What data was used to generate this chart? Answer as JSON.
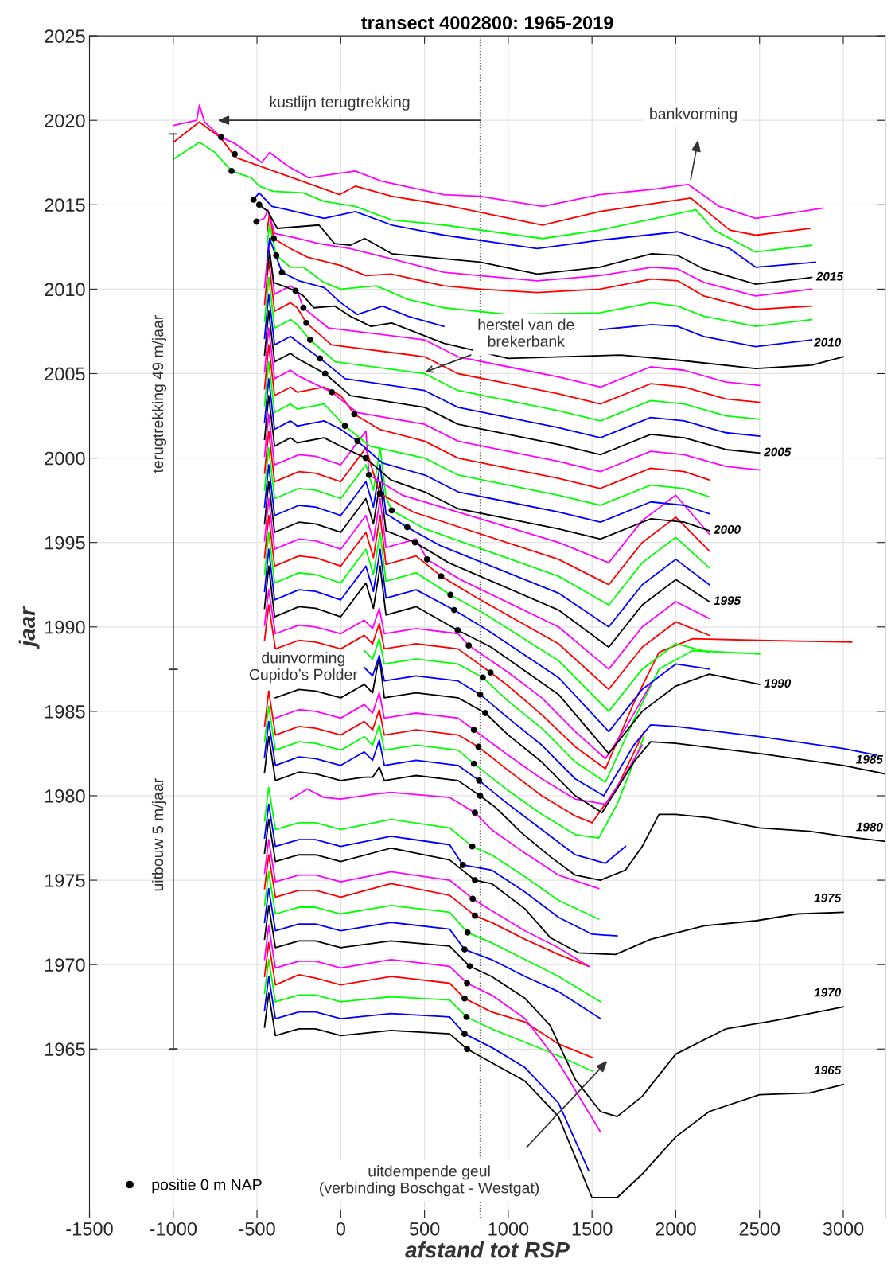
{
  "chart_data": {
    "type": "line",
    "title": "transect 4002800: 1965-2019",
    "xlabel": "afstand tot RSP",
    "ylabel": "jaar",
    "xlim": [
      -1500,
      3250
    ],
    "ylim": [
      1955,
      2025
    ],
    "xticks": [
      -1500,
      -1000,
      -500,
      0,
      500,
      1000,
      1500,
      2000,
      2500,
      3000
    ],
    "yticks": [
      1965,
      1970,
      1975,
      1980,
      1985,
      1990,
      1995,
      2000,
      2005,
      2010,
      2015,
      2020,
      2025
    ],
    "grid": true,
    "legend": "bottom left",
    "ref_lines": [
      {
        "axis": "x",
        "value": 832,
        "color": "#606060",
        "line_style": "dotted"
      }
    ],
    "annotations": [
      "kustlijn terugtrekking",
      "bankvorming",
      {
        "text": "herstel van de\nbrekerbank",
        "x": 506,
        "y": 2005.1
      },
      "duinvorming\nCupido’s Polder",
      "uitdempende geul\n(verbinding Boschgat - Westgat)",
      "terugtrekking 49 m/jaar",
      "uitbouw 5 m/jaar"
    ],
    "series": [
      {
        "name": "1965",
        "color": "#000000",
        "x": [
          -455,
          -430,
          -390,
          -250,
          -150,
          0,
          300,
          650,
          754,
          900,
          1100,
          1300,
          1500,
          1650,
          1800,
          2000,
          2200,
          2500,
          2800,
          3000
        ],
        "values": [
          1966.3,
          1968.3,
          1965.8,
          1966.2,
          1966.2,
          1965.8,
          1966.1,
          1965.9,
          1965.0,
          1964.2,
          1963.1,
          1961.0,
          1956.2,
          1956.2,
          1957.6,
          1959.8,
          1961.3,
          1962.3,
          1962.4,
          1962.9
        ]
      },
      {
        "color": "#0000ff",
        "x": [
          -455,
          -430,
          -390,
          -250,
          -150,
          0,
          300,
          650,
          739,
          900,
          1100,
          1300,
          1480
        ],
        "values": [
          1967.3,
          1969.3,
          1966.8,
          1967.2,
          1967.2,
          1966.8,
          1967.1,
          1966.9,
          1965.9,
          1965.1,
          1963.9,
          1961.8,
          1957.8
        ]
      },
      {
        "color": "#00ff00",
        "x": [
          -455,
          -430,
          -390,
          -250,
          -150,
          0,
          300,
          650,
          751,
          900,
          1100,
          1300,
          1500
        ],
        "values": [
          1968.3,
          1970.3,
          1967.8,
          1968.2,
          1968.2,
          1967.8,
          1968.1,
          1967.9,
          1966.9,
          1966.2,
          1965.4,
          1964.6,
          1963.7
        ]
      },
      {
        "color": "#ff0000",
        "x": [
          -455,
          -430,
          -390,
          -250,
          -150,
          0,
          300,
          650,
          739,
          900,
          1100,
          1300,
          1500
        ],
        "values": [
          1969.3,
          1971.3,
          1968.8,
          1969.4,
          1969.2,
          1968.8,
          1969.3,
          1968.9,
          1968.0,
          1967.2,
          1966.6,
          1965.3,
          1964.5
        ]
      },
      {
        "color": "#ff00ff",
        "x": [
          -455,
          -430,
          -390,
          -250,
          -150,
          0,
          300,
          650,
          754,
          900,
          1100,
          1300,
          1550
        ],
        "values": [
          1970.3,
          1972.3,
          1969.8,
          1970.2,
          1970.2,
          1969.8,
          1970.3,
          1969.9,
          1968.9,
          1968.2,
          1966.8,
          1964.2,
          1960.1
        ]
      },
      {
        "name": "1970",
        "color": "#000000",
        "x": [
          -455,
          -430,
          -390,
          -250,
          -150,
          0,
          300,
          650,
          770,
          900,
          1100,
          1250,
          1400,
          1550,
          1650,
          1800,
          2000,
          2300,
          2600,
          3000
        ],
        "values": [
          1971.5,
          1973.5,
          1971.0,
          1971.4,
          1971.4,
          1971.0,
          1971.4,
          1971.1,
          1969.9,
          1969.3,
          1968.0,
          1966.4,
          1963.2,
          1961.3,
          1961.0,
          1962.2,
          1964.7,
          1966.2,
          1966.7,
          1967.5
        ]
      },
      {
        "color": "#0000ff",
        "x": [
          -455,
          -430,
          -390,
          -250,
          -150,
          0,
          300,
          650,
          739,
          900,
          1100,
          1300,
          1550
        ],
        "values": [
          1972.5,
          1974.5,
          1972.0,
          1972.4,
          1972.4,
          1972.0,
          1972.5,
          1972.1,
          1970.9,
          1970.3,
          1969.3,
          1968.4,
          1966.8
        ]
      },
      {
        "color": "#00ff00",
        "x": [
          -455,
          -430,
          -390,
          -250,
          -150,
          0,
          300,
          650,
          757,
          900,
          1100,
          1300,
          1550
        ],
        "values": [
          1973.5,
          1975.5,
          1973.0,
          1973.4,
          1973.4,
          1973.0,
          1973.5,
          1973.1,
          1971.9,
          1971.3,
          1970.3,
          1969.3,
          1967.8
        ]
      },
      {
        "color": "#ff0000",
        "x": [
          -455,
          -430,
          -390,
          -250,
          -150,
          0,
          300,
          650,
          801,
          900,
          1100,
          1300,
          1480
        ],
        "values": [
          1974.5,
          1976.5,
          1974.0,
          1974.4,
          1974.4,
          1974.0,
          1974.8,
          1974.1,
          1972.9,
          1972.5,
          1971.5,
          1970.6,
          1969.9
        ]
      },
      {
        "color": "#ff00ff",
        "x": [
          -455,
          -430,
          -390,
          -250,
          -150,
          0,
          300,
          650,
          788,
          900,
          1100,
          1300,
          1480
        ],
        "values": [
          1975.4,
          1977.4,
          1974.9,
          1975.3,
          1975.3,
          1974.9,
          1975.5,
          1975.0,
          1973.9,
          1973.2,
          1972.0,
          1971.0,
          1969.9
        ]
      },
      {
        "name": "1975",
        "color": "#000000",
        "x": [
          -455,
          -430,
          -390,
          -250,
          -150,
          0,
          300,
          650,
          801,
          900,
          1100,
          1250,
          1420,
          1640,
          1850,
          2170,
          2480,
          2725,
          3000
        ],
        "values": [
          1976.6,
          1978.6,
          1976.1,
          1976.5,
          1976.5,
          1976.1,
          1976.9,
          1976.2,
          1975.0,
          1974.8,
          1973.3,
          1971.6,
          1970.7,
          1970.6,
          1971.5,
          1972.3,
          1972.6,
          1973.0,
          1973.1
        ]
      },
      {
        "color": "#0000ff",
        "x": [
          -455,
          -430,
          -390,
          -250,
          -150,
          0,
          300,
          650,
          729,
          900,
          1100,
          1300,
          1500,
          1650
        ],
        "values": [
          1977.5,
          1979.5,
          1977.0,
          1977.4,
          1977.4,
          1977.0,
          1977.6,
          1977.1,
          1975.9,
          1975.6,
          1974.3,
          1972.8,
          1971.8,
          1971.7
        ]
      },
      {
        "color": "#00ff00",
        "x": [
          -455,
          -430,
          -390,
          -250,
          -150,
          0,
          300,
          650,
          785,
          900,
          1100,
          1300,
          1540
        ],
        "values": [
          1978.5,
          1980.5,
          1978.0,
          1978.4,
          1978.4,
          1978.0,
          1978.6,
          1978.1,
          1977.0,
          1976.5,
          1975.2,
          1973.8,
          1972.7
        ]
      },
      {
        "color": "#ff00ff",
        "x": [
          -300,
          -200,
          -100,
          0,
          200,
          300,
          650,
          801,
          900,
          1100,
          1300,
          1540
        ],
        "values": [
          1979.8,
          1980.4,
          1979.9,
          1979.8,
          1980.1,
          1980.2,
          1979.9,
          1979.0,
          1978.0,
          1976.6,
          1975.3,
          1974.5
        ]
      },
      {
        "name": "1980",
        "color": "#000000",
        "x": [
          -455,
          -430,
          -390,
          -250,
          -150,
          0,
          140,
          190,
          230,
          260,
          450,
          700,
          832,
          925,
          1080,
          1250,
          1400,
          1550,
          1700,
          1800,
          1900,
          2000,
          2200,
          2500,
          2800,
          3000,
          3250
        ],
        "values": [
          1981.4,
          1983.5,
          1980.9,
          1981.4,
          1981.3,
          1980.9,
          1981.1,
          1981.1,
          1981.7,
          1980.9,
          1981.2,
          1980.9,
          1980.0,
          1979.3,
          1977.8,
          1976.4,
          1975.3,
          1975.0,
          1975.6,
          1977.0,
          1978.9,
          1978.9,
          1978.7,
          1978.1,
          1977.9,
          1977.6,
          1977.3
        ]
      },
      {
        "color": "#0000ff",
        "x": [
          -455,
          -430,
          -390,
          -250,
          -150,
          0,
          140,
          190,
          230,
          260,
          450,
          700,
          826,
          1000,
          1200,
          1400,
          1580,
          1700
        ],
        "values": [
          1982.3,
          1984.4,
          1981.8,
          1982.3,
          1982.2,
          1981.8,
          1982.6,
          1982.1,
          1983.3,
          1981.8,
          1982.1,
          1981.8,
          1980.9,
          1979.5,
          1978.0,
          1976.5,
          1976.0,
          1977.0
        ]
      },
      {
        "color": "#00ff00",
        "x": [
          -455,
          -430,
          -390,
          -250,
          -150,
          0,
          140,
          190,
          230,
          260,
          450,
          700,
          795,
          1000,
          1200,
          1400,
          1540,
          1650,
          1810
        ],
        "values": [
          1983.2,
          1985.3,
          1982.7,
          1983.2,
          1983.1,
          1982.7,
          1983.5,
          1983.0,
          1984.2,
          1982.7,
          1983.0,
          1982.7,
          1981.9,
          1980.3,
          1978.9,
          1977.7,
          1977.5,
          1979.5,
          1983.5
        ]
      },
      {
        "color": "#ff0000",
        "x": [
          -455,
          -430,
          -390,
          -250,
          -150,
          0,
          140,
          190,
          230,
          260,
          450,
          700,
          822,
          1000,
          1200,
          1400,
          1500,
          1650,
          1810
        ],
        "values": [
          1984.1,
          1986.2,
          1983.6,
          1984.1,
          1984.0,
          1983.6,
          1984.4,
          1983.9,
          1985.1,
          1983.6,
          1983.9,
          1983.6,
          1982.9,
          1981.5,
          1980.0,
          1978.8,
          1978.4,
          1980.5,
          1983.8
        ]
      },
      {
        "color": "#ff00ff",
        "x": [
          -390,
          -250,
          -150,
          0,
          140,
          190,
          230,
          260,
          450,
          700,
          795,
          1000,
          1200,
          1400,
          1580,
          1700,
          1800
        ],
        "values": [
          1984.6,
          1985.1,
          1985.0,
          1984.6,
          1985.4,
          1984.9,
          1986.1,
          1984.6,
          1984.9,
          1984.6,
          1983.9,
          1982.4,
          1981.0,
          1979.8,
          1979.5,
          1981.3,
          1983.0
        ]
      },
      {
        "name": "1985",
        "color": "#000000",
        "x": [
          -390,
          -250,
          -150,
          0,
          140,
          190,
          230,
          260,
          450,
          700,
          863,
          1000,
          1200,
          1400,
          1560,
          1750,
          1850,
          2000,
          2500,
          3000,
          3250
        ],
        "values": [
          1985.8,
          1986.3,
          1986.2,
          1985.8,
          1986.6,
          1986.1,
          1988.3,
          1985.8,
          1986.1,
          1985.8,
          1984.9,
          1983.6,
          1982.0,
          1980.0,
          1979.0,
          1982.0,
          1983.2,
          1983.1,
          1982.5,
          1981.8,
          1981.3
        ]
      },
      {
        "color": "#0000ff",
        "x": [
          140,
          190,
          230,
          260,
          450,
          700,
          832,
          1000,
          1200,
          1400,
          1570,
          1750,
          1850,
          2000,
          2500,
          3000,
          3200
        ],
        "values": [
          1987.6,
          1987.1,
          1988.3,
          1986.8,
          1987.1,
          1986.8,
          1986.0,
          1984.6,
          1983.0,
          1981.0,
          1980.0,
          1983.0,
          1984.2,
          1984.1,
          1983.5,
          1982.8,
          1982.4
        ]
      },
      {
        "color": "#00ff00",
        "x": [
          140,
          190,
          230,
          260,
          450,
          700,
          848,
          1000,
          1200,
          1400,
          1580,
          1750,
          1900,
          2100,
          2500
        ],
        "values": [
          1988.6,
          1988.1,
          1989.3,
          1987.8,
          1988.1,
          1987.8,
          1987.0,
          1985.6,
          1984.0,
          1982.0,
          1980.8,
          1984.5,
          1987.5,
          1988.6,
          1988.4
        ]
      },
      {
        "color": "#ff0000",
        "x": [
          -455,
          -430,
          -390,
          -250,
          -150,
          0,
          140,
          190,
          230,
          260,
          450,
          700,
          894,
          1000,
          1200,
          1400,
          1580,
          1750,
          1900,
          2100,
          2500,
          3050
        ],
        "values": [
          1989.2,
          1991.3,
          1988.7,
          1989.2,
          1989.1,
          1988.7,
          1989.5,
          1989.0,
          1990.2,
          1988.7,
          1989.0,
          1988.7,
          1987.3,
          1986.5,
          1984.8,
          1982.9,
          1981.6,
          1985.5,
          1988.5,
          1989.3,
          1989.2,
          1989.1
        ]
      },
      {
        "color": "#ff00ff",
        "x": [
          -455,
          -430,
          -390,
          -250,
          -150,
          0,
          140,
          190,
          230,
          260,
          450,
          700,
          764,
          1000,
          1200,
          1400,
          1580,
          1700,
          1850
        ],
        "values": [
          1990.1,
          1992.2,
          1989.6,
          1990.1,
          1990.0,
          1989.6,
          1990.4,
          1989.9,
          1991.1,
          1989.6,
          1989.9,
          1989.6,
          1988.9,
          1987.3,
          1985.8,
          1983.8,
          1982.2,
          1984.0,
          1986.6
        ]
      },
      {
        "name": "1990",
        "color": "#000000",
        "x": [
          -455,
          -430,
          -395,
          -250,
          -150,
          0,
          150,
          195,
          235,
          270,
          450,
          698,
          898,
          1300,
          1600,
          1800,
          2000,
          2200,
          2500
        ],
        "values": [
          1991.1,
          1993.6,
          1990.6,
          1991.2,
          1991.1,
          1990.6,
          1992.6,
          1991.1,
          1993.6,
          1990.7,
          1991.2,
          1989.8,
          1988.8,
          1986.0,
          1982.5,
          1985.0,
          1986.5,
          1987.2,
          1986.6
        ]
      },
      {
        "color": "#0000ff",
        "x": [
          -455,
          -430,
          -395,
          -250,
          -150,
          0,
          150,
          195,
          235,
          270,
          450,
          677,
          877,
          1300,
          1600,
          1800,
          2000,
          2200
        ],
        "values": [
          1992.1,
          1994.6,
          1991.6,
          1992.2,
          1992.1,
          1991.6,
          1993.6,
          1992.1,
          1994.6,
          1991.7,
          1992.2,
          1991.0,
          1989.8,
          1987.0,
          1983.8,
          1986.3,
          1987.8,
          1987.5
        ]
      },
      {
        "color": "#00ff00",
        "x": [
          -455,
          -430,
          -395,
          -250,
          -150,
          0,
          150,
          195,
          235,
          270,
          450,
          655,
          855,
          1300,
          1600,
          1800,
          2000,
          2200
        ],
        "values": [
          1993.1,
          1995.6,
          1992.6,
          1993.2,
          1993.1,
          1992.6,
          1994.6,
          1993.1,
          1995.6,
          1992.7,
          1993.2,
          1991.9,
          1990.8,
          1988.0,
          1985.0,
          1987.5,
          1989.0,
          1988.5
        ]
      },
      {
        "color": "#ff0000",
        "x": [
          -455,
          -430,
          -395,
          -250,
          -150,
          0,
          150,
          195,
          235,
          270,
          450,
          599,
          799,
          1300,
          1600,
          1800,
          2000,
          2200
        ],
        "values": [
          1994.1,
          1996.6,
          1993.6,
          1994.2,
          1994.1,
          1993.6,
          1995.6,
          1994.1,
          1996.6,
          1993.7,
          1994.2,
          1993.0,
          1991.8,
          1989.0,
          1986.3,
          1988.8,
          1990.3,
          1989.5
        ]
      },
      {
        "color": "#ff00ff",
        "x": [
          -455,
          -430,
          -395,
          -250,
          -150,
          0,
          150,
          195,
          235,
          270,
          450,
          515,
          715,
          1300,
          1600,
          1800,
          2000,
          2200
        ],
        "values": [
          1995.1,
          1997.6,
          1994.6,
          1995.2,
          1995.1,
          1994.6,
          1996.6,
          1995.1,
          1997.6,
          1994.7,
          1995.2,
          1994.0,
          1992.8,
          1990.0,
          1987.5,
          1990.0,
          1991.5,
          1990.5
        ]
      },
      {
        "name": "1995",
        "color": "#000000",
        "x": [
          -455,
          -430,
          -395,
          -250,
          -150,
          0,
          150,
          195,
          235,
          270,
          444,
          644,
          1300,
          1600,
          1800,
          2000,
          2200
        ],
        "values": [
          1996.1,
          1998.6,
          1995.6,
          1996.2,
          1996.1,
          1995.6,
          1997.6,
          1996.1,
          1998.6,
          1995.7,
          1995.0,
          1993.8,
          1991.0,
          1988.8,
          1991.3,
          1992.8,
          1991.5
        ]
      },
      {
        "color": "#0000ff",
        "x": [
          -455,
          -430,
          -395,
          -250,
          -150,
          0,
          150,
          195,
          235,
          270,
          397,
          597,
          1300,
          1600,
          1800,
          2000,
          2200
        ],
        "values": [
          1997.1,
          1999.6,
          1996.6,
          1997.2,
          1997.1,
          1996.6,
          1998.6,
          1997.1,
          1999.6,
          1996.7,
          1995.9,
          1994.8,
          1992.0,
          1990.0,
          1992.5,
          1994.0,
          1992.5
        ]
      },
      {
        "color": "#00ff00",
        "x": [
          -455,
          -430,
          -395,
          -250,
          -150,
          0,
          150,
          195,
          235,
          270,
          304,
          504,
          1300,
          1600,
          1800,
          2000,
          2200
        ],
        "values": [
          1998.1,
          2000.6,
          1997.6,
          1998.2,
          1998.1,
          1997.6,
          1999.6,
          1998.1,
          2000.6,
          1997.7,
          1996.9,
          1995.8,
          1993.0,
          1991.3,
          1993.8,
          1995.3,
          1993.5
        ]
      },
      {
        "color": "#ff0000",
        "x": [
          -455,
          -430,
          -395,
          -250,
          -150,
          0,
          150,
          195,
          233,
          433,
          1300,
          1600,
          1800,
          2000,
          2200
        ],
        "values": [
          1999.1,
          2001.6,
          1998.6,
          1999.2,
          1999.1,
          1998.6,
          2000.6,
          1999.1,
          1997.9,
          1996.8,
          1994.0,
          1992.5,
          1995.0,
          1996.5,
          1994.5
        ]
      },
      {
        "color": "#ff00ff",
        "x": [
          -455,
          -430,
          -395,
          -250,
          -150,
          0,
          150,
          168,
          368,
          1300,
          1600,
          1800,
          2000,
          2200
        ],
        "values": [
          2000.1,
          2002.6,
          1999.6,
          2000.2,
          2000.1,
          1999.6,
          2001.6,
          1999.0,
          1997.8,
          1995.0,
          1993.8,
          1996.3,
          1997.8,
          1995.5
        ]
      },
      {
        "name": "2000",
        "color": "#000000",
        "x": [
          -455,
          -430,
          -395,
          -300,
          -260,
          -100,
          0,
          149,
          299,
          500,
          700,
          1000,
          1300,
          1550,
          1850,
          2050,
          2200
        ],
        "values": [
          2001.1,
          2003.7,
          2000.7,
          2001.2,
          2000.9,
          2001.2,
          2000.7,
          2000.0,
          1998.7,
          1998.0,
          1997.0,
          1996.4,
          1995.8,
          1995.2,
          1996.4,
          1996.2,
          1995.7
        ]
      },
      {
        "color": "#0000ff",
        "x": [
          -455,
          -430,
          -395,
          -300,
          -260,
          -100,
          0,
          100,
          250,
          500,
          700,
          1000,
          1300,
          1550,
          1850,
          2050,
          2200
        ],
        "values": [
          2002.1,
          2004.7,
          2001.7,
          2002.2,
          2001.9,
          2002.2,
          2001.7,
          2001.0,
          1999.7,
          1999.0,
          1998.0,
          1997.4,
          1996.8,
          1996.2,
          1997.4,
          1997.2,
          1996.7
        ]
      },
      {
        "color": "#00ff00",
        "x": [
          -455,
          -430,
          -395,
          -300,
          -260,
          -100,
          25,
          175,
          500,
          700,
          1000,
          1300,
          1550,
          1850,
          2050,
          2200
        ],
        "values": [
          2003.1,
          2005.7,
          2002.7,
          2003.2,
          2002.9,
          2003.2,
          2001.9,
          2000.7,
          2000.0,
          1999.0,
          1998.4,
          1997.8,
          1997.2,
          1998.4,
          1998.2,
          1997.7
        ]
      },
      {
        "color": "#ff0000",
        "x": [
          -455,
          -430,
          -395,
          -300,
          -260,
          -100,
          0,
          81,
          231,
          500,
          700,
          1000,
          1300,
          1550,
          1850,
          2050,
          2200
        ],
        "values": [
          2004.1,
          2006.7,
          2003.7,
          2004.2,
          2003.9,
          2004.2,
          2003.7,
          2002.6,
          2001.7,
          2001.0,
          2000.0,
          1999.4,
          1998.8,
          1998.2,
          1999.4,
          1999.2,
          1998.7
        ]
      },
      {
        "color": "#ff00ff",
        "x": [
          -455,
          -430,
          -395,
          -300,
          -260,
          -53,
          97,
          500,
          700,
          1000,
          1300,
          1550,
          1850,
          2050,
          2300,
          2500
        ],
        "values": [
          2005.1,
          2007.7,
          2004.7,
          2005.2,
          2004.9,
          2003.9,
          2002.7,
          2002.0,
          2001.0,
          2000.4,
          1999.8,
          1999.2,
          2000.4,
          2000.2,
          1999.5,
          1999.3
        ]
      },
      {
        "name": "2005",
        "color": "#000000",
        "x": [
          -455,
          -430,
          -395,
          -300,
          -260,
          -93,
          57,
          500,
          700,
          1000,
          1300,
          1550,
          1850,
          2050,
          2300,
          2500
        ],
        "values": [
          2006.1,
          2008.7,
          2005.7,
          2006.2,
          2005.9,
          2005.0,
          2003.7,
          2003.0,
          2002.0,
          2001.4,
          2000.8,
          2000.2,
          2001.4,
          2001.2,
          2000.5,
          2000.3
        ]
      },
      {
        "color": "#0000ff",
        "x": [
          -455,
          -430,
          -395,
          -300,
          -260,
          -124,
          26,
          500,
          700,
          1000,
          1300,
          1550,
          1850,
          2050,
          2300,
          2500
        ],
        "values": [
          2007.1,
          2009.7,
          2006.7,
          2007.2,
          2006.9,
          2005.9,
          2004.7,
          2004.0,
          2003.0,
          2002.4,
          2001.8,
          2001.2,
          2002.4,
          2002.2,
          2001.5,
          2001.3
        ]
      },
      {
        "color": "#00ff00",
        "x": [
          -455,
          -430,
          -395,
          -300,
          -260,
          -183,
          -33,
          500,
          700,
          1000,
          1300,
          1550,
          1850,
          2050,
          2300,
          2500
        ],
        "values": [
          2008.1,
          2010.7,
          2007.7,
          2008.2,
          2007.9,
          2007.0,
          2005.7,
          2005.0,
          2004.0,
          2003.4,
          2002.8,
          2002.2,
          2003.4,
          2003.2,
          2002.5,
          2002.3
        ]
      },
      {
        "color": "#ff0000",
        "x": [
          -455,
          -430,
          -395,
          -300,
          -260,
          -205,
          -55,
          500,
          700,
          1000,
          1300,
          1550,
          1850,
          2050,
          2300,
          2500
        ],
        "values": [
          2009.1,
          2011.7,
          2008.7,
          2009.2,
          2008.9,
          2008.0,
          2006.7,
          2006.0,
          2005.0,
          2004.4,
          2003.8,
          2003.2,
          2004.4,
          2004.2,
          2003.5,
          2003.3
        ]
      },
      {
        "color": "#ff00ff",
        "x": [
          -455,
          -430,
          -395,
          -300,
          -260,
          -223,
          -73,
          500,
          700,
          1000,
          1300,
          1550,
          1850,
          2050,
          2300,
          2500
        ],
        "values": [
          2010.1,
          2012.7,
          2009.7,
          2010.2,
          2009.9,
          2008.9,
          2007.7,
          2007.0,
          2006.0,
          2005.4,
          2004.8,
          2004.2,
          2005.4,
          2005.2,
          2004.5,
          2004.3
        ]
      },
      {
        "name": "2010",
        "color": "#000000",
        "x": [
          -440,
          -425,
          -400,
          -270,
          -223,
          -161,
          -37,
          56,
          180,
          304,
          615,
          1000,
          1670,
          2011,
          2477,
          2812,
          3000
        ],
        "values": [
          2010.9,
          2012.2,
          2010.4,
          2009.9,
          2009.6,
          2008.9,
          2009.0,
          2008.4,
          2007.8,
          2008.0,
          2006.8,
          2005.9,
          2006.1,
          2005.8,
          2005.3,
          2005.5,
          2006.0
        ]
      },
      {
        "color": "#0000ff",
        "x": [
          -440,
          -425,
          -351,
          -250,
          -100,
          0,
          100,
          250,
          400,
          615,
          1000,
          1546,
          1856,
          2011,
          2167,
          2477,
          2812
        ],
        "values": [
          2011.7,
          2013.0,
          2011.0,
          2010.5,
          2010.1,
          2009.2,
          2008.5,
          2009.0,
          2008.4,
          2007.8,
          null,
          2007.6,
          2007.9,
          2007.8,
          2007.2,
          2006.6,
          2007.0
        ]
      },
      {
        "color": "#00ff00",
        "x": [
          -440,
          -425,
          -385,
          -300,
          -223,
          -100,
          0,
          211,
          400,
          615,
          1000,
          1546,
          1856,
          2011,
          2167,
          2477,
          2812
        ],
        "values": [
          2012.6,
          2013.8,
          2012.0,
          2011.3,
          2011.3,
          2010.4,
          2010.0,
          2010.2,
          2009.4,
          2008.9,
          2008.5,
          2008.6,
          2009.2,
          2009.0,
          2008.4,
          2007.8,
          2008.2
        ]
      },
      {
        "color": "#ff0000",
        "x": [
          -440,
          -425,
          -400,
          -300,
          -200,
          0,
          150,
          300,
          615,
          832,
          1173,
          1546,
          1856,
          2011,
          2167,
          2477,
          2812
        ],
        "values": [
          2013.4,
          2014.5,
          2013.0,
          2012.4,
          2011.9,
          2011.4,
          2010.8,
          2010.9,
          2010.2,
          2010.0,
          2009.8,
          2010.0,
          2010.6,
          2010.5,
          2009.6,
          2008.8,
          2009.0
        ]
      },
      {
        "color": "#ff00ff",
        "x": [
          -503,
          -456,
          -435,
          -394,
          -255,
          -130,
          56,
          300,
          615,
          832,
          1173,
          1546,
          1856,
          2011,
          2167,
          2477,
          2812
        ],
        "values": [
          2014.0,
          2014.2,
          2014.7,
          2013.3,
          2013.0,
          2012.7,
          2012.4,
          2011.8,
          2011.0,
          2010.8,
          2010.5,
          2010.8,
          2011.3,
          2011.2,
          2010.4,
          2009.6,
          2010.0
        ]
      },
      {
        "name": "2015",
        "color": "#000000",
        "x": [
          -487,
          -435,
          -379,
          -130,
          -37,
          56,
          143,
          304,
          615,
          832,
          1173,
          1546,
          1856,
          2011,
          2167,
          2477,
          2812
        ],
        "values": [
          2015.0,
          2014.6,
          2013.6,
          2013.8,
          2012.7,
          2012.6,
          2013.0,
          2012.1,
          2011.8,
          2011.6,
          2010.9,
          2011.3,
          2012.1,
          2012.0,
          2011.2,
          2010.3,
          2010.7
        ]
      },
      {
        "color": "#0000ff",
        "x": [
          -521,
          -487,
          -410,
          -317,
          -99,
          87,
          304,
          615,
          1173,
          1546,
          2011,
          2322,
          2477,
          2834
        ],
        "values": [
          2015.3,
          2015.7,
          2014.9,
          2014.7,
          2014.2,
          2014.6,
          2013.8,
          2013.2,
          2012.4,
          2012.9,
          2013.4,
          2012.4,
          2011.3,
          2011.6
        ]
      },
      {
        "color": "#00ff00",
        "x": [
          -999,
          -844,
          -751,
          -652,
          -534,
          -487,
          -404,
          -223,
          -99,
          87,
          304,
          615,
          1204,
          1546,
          2120,
          2229,
          2477,
          2812
        ],
        "values": [
          2017.7,
          2018.7,
          2018.1,
          2017.0,
          2016.6,
          2016.1,
          2015.8,
          2015.7,
          2015.2,
          2014.9,
          2014.1,
          2013.8,
          2013.0,
          2013.5,
          2014.7,
          2013.5,
          2012.2,
          2012.6
        ]
      },
      {
        "color": "#ff0000",
        "x": [
          -999,
          -844,
          -720,
          -627,
          -6,
          87,
          304,
          615,
          1204,
          1546,
          2089,
          2322,
          2477,
          2803
        ],
        "values": [
          2018.7,
          2019.9,
          2019.0,
          2017.8,
          2015.6,
          2016.1,
          2015.5,
          2015.0,
          2013.8,
          2014.6,
          2015.4,
          2013.5,
          2013.2,
          2013.6
        ]
      },
      {
        "color": "#ff00ff",
        "x": [
          -999,
          -860,
          -844,
          -813,
          -714,
          -627,
          -472,
          -425,
          -317,
          -192,
          87,
          242,
          615,
          832,
          1204,
          1546,
          1856,
          2074,
          2260,
          2477,
          2880
        ],
        "values": [
          2019.7,
          2020.0,
          2020.9,
          2019.9,
          2019.0,
          2018.6,
          2017.5,
          2018.1,
          2017.3,
          2016.6,
          2017.0,
          2016.4,
          2015.6,
          2015.5,
          2014.9,
          2015.6,
          2015.9,
          2016.2,
          2014.9,
          2014.2,
          2014.8
        ]
      },
      {
        "name": "positie 0 m NAP",
        "type": "scatter",
        "marker": "circle",
        "color": "#000000",
        "x": [
          754,
          739,
          751,
          739,
          754,
          770,
          739,
          757,
          801,
          788,
          801,
          729,
          785,
          801,
          832,
          826,
          795,
          822,
          795,
          863,
          832,
          848,
          894,
          764,
          698,
          677,
          655,
          599,
          515,
          444,
          397,
          304,
          233,
          168,
          149,
          100,
          25,
          81,
          -53,
          -93,
          -124,
          -183,
          -205,
          -223,
          -270,
          -351,
          -385,
          -400,
          -503,
          -487,
          -521,
          -652,
          -633,
          -714
        ],
        "values": [
          1965.0,
          1965.9,
          1966.9,
          1968.0,
          1968.9,
          1969.9,
          1970.9,
          1971.9,
          1972.9,
          1973.9,
          1975.0,
          1975.9,
          1977.0,
          1979.0,
          1980.0,
          1980.9,
          1981.9,
          1982.9,
          1983.9,
          1984.9,
          1986.0,
          1987.0,
          1987.3,
          1988.9,
          1989.8,
          1991.0,
          1991.9,
          1993.0,
          1994.0,
          1995.0,
          1995.9,
          1996.9,
          1997.9,
          1999.0,
          2000.0,
          2001.0,
          2001.9,
          2002.6,
          2003.9,
          2005.0,
          2005.9,
          2007.0,
          2008.0,
          2008.9,
          2009.9,
          2011.0,
          2012.0,
          2013.0,
          2014.0,
          2015.0,
          2015.3,
          2017.0,
          2018.0,
          2019.0
        ]
      }
    ]
  }
}
